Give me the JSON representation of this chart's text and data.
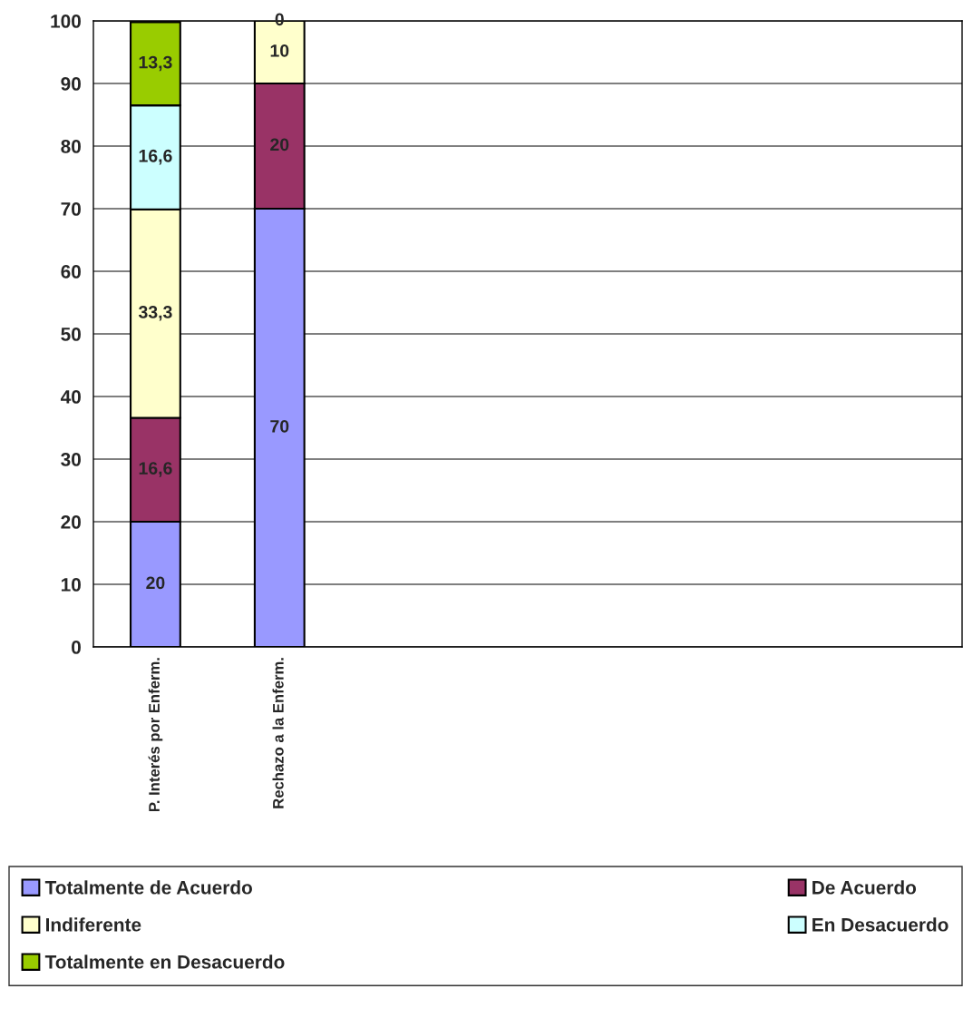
{
  "chart_data": {
    "type": "bar",
    "stacked": true,
    "categories": [
      "P. Interés por Enferm.",
      "Rechazo a la Enferm.",
      null,
      null,
      null,
      null,
      null
    ],
    "series": [
      {
        "name": "Totalmente de Acuerdo",
        "color": "#9999ff",
        "values": [
          20,
          70,
          null,
          null,
          null,
          null,
          null
        ],
        "value_labels": [
          "20",
          "70",
          null,
          null,
          null,
          null,
          null
        ]
      },
      {
        "name": "De Acuerdo",
        "color": "#993366",
        "values": [
          16.6,
          20,
          null,
          null,
          null,
          null,
          null
        ],
        "value_labels": [
          "16,6",
          "20",
          null,
          null,
          null,
          null,
          null
        ]
      },
      {
        "name": "Indiferente",
        "color": "#ffffcc",
        "values": [
          33.3,
          10,
          null,
          null,
          null,
          null,
          null
        ],
        "value_labels": [
          "33,3",
          "10",
          null,
          null,
          null,
          null,
          null
        ]
      },
      {
        "name": "En Desacuerdo",
        "color": "#ccffff",
        "values": [
          16.6,
          0,
          null,
          null,
          null,
          null,
          null
        ],
        "value_labels": [
          "16,6",
          "0",
          null,
          null,
          null,
          null,
          null
        ]
      },
      {
        "name": "Totalmente en Desacuerdo",
        "color": "#99cc00",
        "values": [
          13.3,
          0,
          null,
          null,
          null,
          null,
          null
        ],
        "value_labels": [
          "13,3",
          null,
          null,
          null,
          null,
          null,
          null
        ]
      }
    ],
    "ylim": [
      0,
      100
    ],
    "yticks": [
      0,
      10,
      20,
      30,
      40,
      50,
      60,
      70,
      80,
      90,
      100
    ],
    "grid": "y",
    "legend": "bottom"
  }
}
